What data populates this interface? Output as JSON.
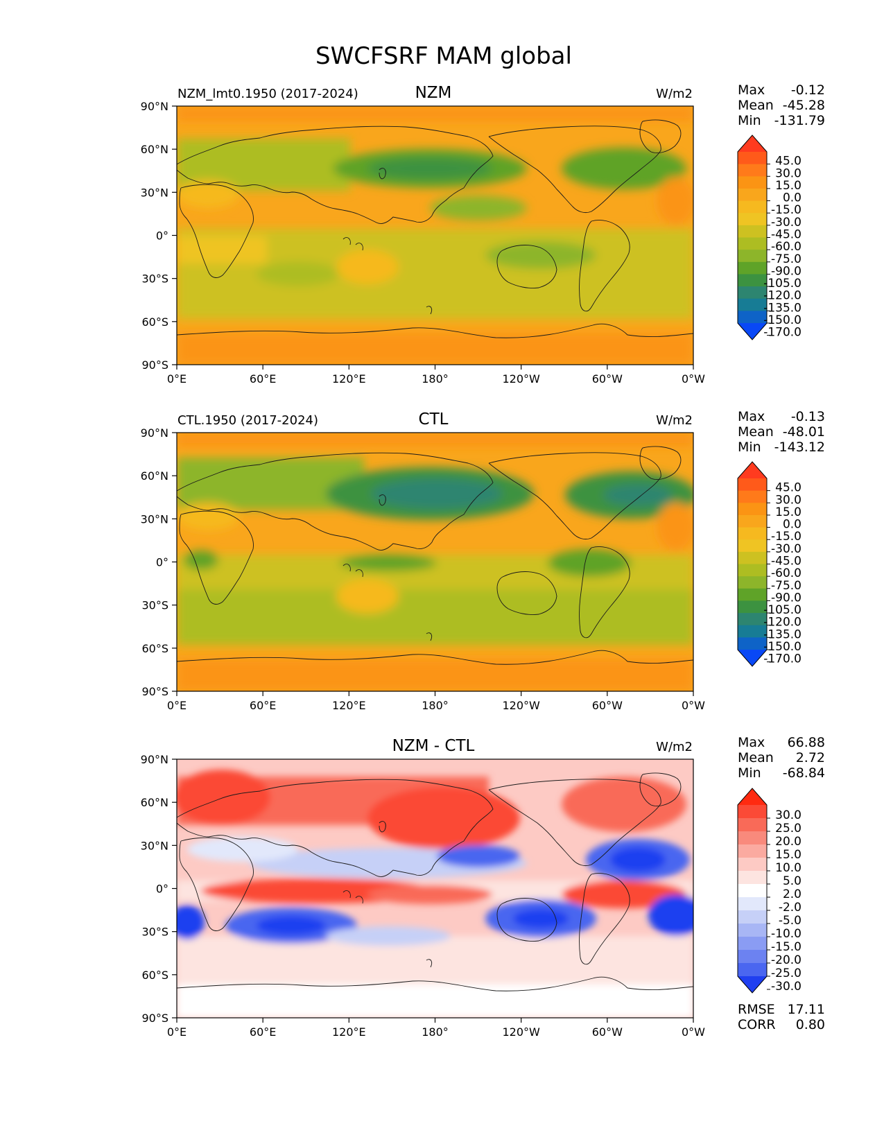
{
  "title": "SWCFSRF MAM global",
  "chart_data": [
    {
      "type": "heatmap",
      "title": "NZM",
      "case_label": "NZM_lmt0.1950 (2017-2024)",
      "units": "W/m2",
      "stats": [
        {
          "label": "Max",
          "value": "-0.12"
        },
        {
          "label": "Mean",
          "value": "-45.28"
        },
        {
          "label": "Min",
          "value": "-131.79"
        }
      ],
      "colorbar_levels": [
        "45.0",
        "30.0",
        "15.0",
        "0.0",
        "-15.0",
        "-30.0",
        "-45.0",
        "-60.0",
        "-75.0",
        "-90.0",
        "-105.0",
        "-120.0",
        "-135.0",
        "-150.0",
        "-170.0"
      ],
      "colorbar_colors": [
        "#ff3b1f",
        "#ff5a1a",
        "#ff7a1a",
        "#fb9414",
        "#f9a61c",
        "#f6b91f",
        "#efc423",
        "#cdc121",
        "#adbd22",
        "#8db52a",
        "#5fa328",
        "#3c9240",
        "#2d8570",
        "#177c95",
        "#0e63c7",
        "#0948f6"
      ],
      "xticks": [
        "0°E",
        "60°E",
        "120°E",
        "180°",
        "120°W",
        "60°W",
        "0°W"
      ],
      "yticks": [
        "90°N",
        "60°N",
        "30°N",
        "0°",
        "30°S",
        "60°S",
        "90°S"
      ]
    },
    {
      "type": "heatmap",
      "title": "CTL",
      "case_label": "CTL.1950 (2017-2024)",
      "units": "W/m2",
      "stats": [
        {
          "label": "Max",
          "value": "-0.13"
        },
        {
          "label": "Mean",
          "value": "-48.01"
        },
        {
          "label": "Min",
          "value": "-143.12"
        }
      ],
      "colorbar_levels": [
        "45.0",
        "30.0",
        "15.0",
        "0.0",
        "-15.0",
        "-30.0",
        "-45.0",
        "-60.0",
        "-75.0",
        "-90.0",
        "-105.0",
        "-120.0",
        "-135.0",
        "-150.0",
        "-170.0"
      ],
      "colorbar_colors": [
        "#ff3b1f",
        "#ff5a1a",
        "#ff7a1a",
        "#fb9414",
        "#f9a61c",
        "#f6b91f",
        "#efc423",
        "#cdc121",
        "#adbd22",
        "#8db52a",
        "#5fa328",
        "#3c9240",
        "#2d8570",
        "#177c95",
        "#0e63c7",
        "#0948f6"
      ],
      "xticks": [
        "0°E",
        "60°E",
        "120°E",
        "180°",
        "120°W",
        "60°W",
        "0°W"
      ],
      "yticks": [
        "90°N",
        "60°N",
        "30°N",
        "0°",
        "30°S",
        "60°S",
        "90°S"
      ]
    },
    {
      "type": "heatmap",
      "title": "NZM - CTL",
      "case_label": "",
      "units": "W/m2",
      "stats": [
        {
          "label": "Max",
          "value": "66.88"
        },
        {
          "label": "Mean",
          "value": "2.72"
        },
        {
          "label": "Min",
          "value": "-68.84"
        }
      ],
      "colorbar_levels": [
        "30.0",
        "25.0",
        "20.0",
        "15.0",
        "10.0",
        "5.0",
        "2.0",
        "-2.0",
        "-5.0",
        "-10.0",
        "-15.0",
        "-20.0",
        "-25.0",
        "-30.0"
      ],
      "colorbar_colors": [
        "#ff2a10",
        "#fb4a36",
        "#f96a58",
        "#f98a7c",
        "#fbaaa0",
        "#fdcac4",
        "#fde4e0",
        "#ffffff",
        "#e2e8fb",
        "#c6d0f7",
        "#a8b6f5",
        "#8a9cf3",
        "#6c82f1",
        "#4a66f0",
        "#1f3ff0"
      ],
      "xticks": [
        "0°E",
        "60°E",
        "120°E",
        "180°",
        "120°W",
        "60°W",
        "0°W"
      ],
      "yticks": [
        "90°N",
        "60°N",
        "30°N",
        "0°",
        "30°S",
        "60°S",
        "90°S"
      ],
      "extra_stats": [
        {
          "label": "RMSE",
          "value": "17.11"
        },
        {
          "label": "CORR",
          "value": "0.80"
        }
      ]
    }
  ]
}
